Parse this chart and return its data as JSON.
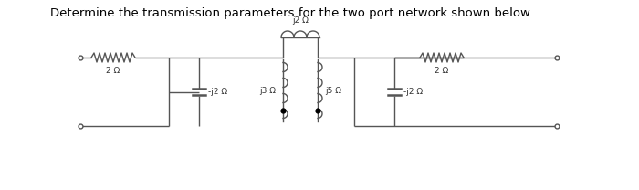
{
  "title": "Determine the transmission parameters for the two port network shown below",
  "title_fontsize": 9.5,
  "bg_color": "#ffffff",
  "line_color": "#555555",
  "text_color": "#333333",
  "lw": 1.0,
  "resistor_label_left": "2 Ω",
  "resistor_label_right": "2 Ω",
  "cap_label_left": "-j2 Ω",
  "cap_label_right": "-j2 Ω",
  "ind_label_left": "j3 Ω",
  "ind_label_right": "j5 Ω",
  "top_label": "j2 Ω",
  "label_fontsize": 6.5
}
